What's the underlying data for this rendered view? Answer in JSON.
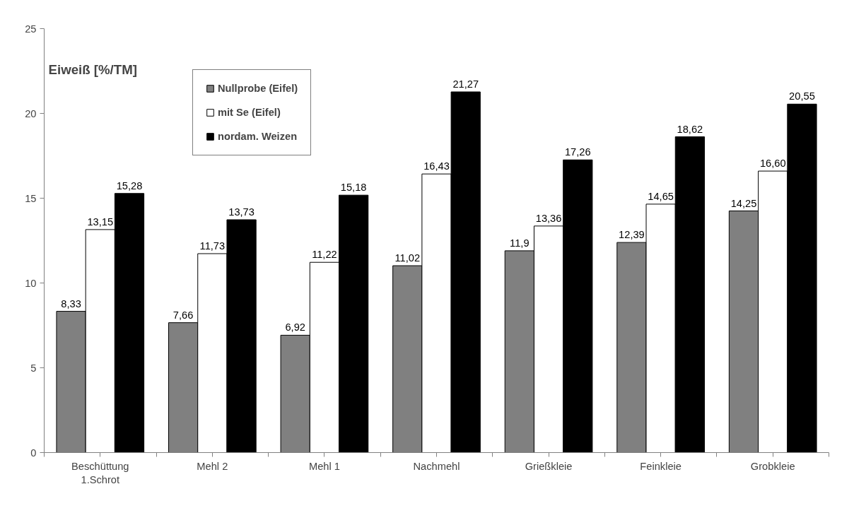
{
  "chart_data": {
    "type": "bar",
    "ylabel": "Eiweiß [%/TM]",
    "categories": [
      "Beschüttung\n1.Schrot",
      "Mehl 2",
      "Mehl 1",
      "Nachmehl",
      "Grießkleie",
      "Feinkleie",
      "Grobkleie"
    ],
    "series": [
      {
        "name": "Nullprobe (Eifel)",
        "color": "#808080",
        "values": [
          8.33,
          7.66,
          6.92,
          11.02,
          11.9,
          12.39,
          14.25
        ],
        "value_labels": [
          "8,33",
          "7,66",
          "6,92",
          "11,02",
          "11,9",
          "12,39",
          "14,25"
        ]
      },
      {
        "name": "mit Se (Eifel)",
        "color": "#ffffff",
        "values": [
          13.15,
          11.73,
          11.22,
          16.43,
          13.36,
          14.65,
          16.6
        ],
        "value_labels": [
          "13,15",
          "11,73",
          "11,22",
          "16,43",
          "13,36",
          "14,65",
          "16,60"
        ]
      },
      {
        "name": "nordam. Weizen",
        "color": "#000000",
        "values": [
          15.28,
          13.73,
          15.18,
          21.27,
          17.26,
          18.62,
          20.55
        ],
        "value_labels": [
          "15,28",
          "13,73",
          "15,18",
          "21,27",
          "17,26",
          "18,62",
          "20,55"
        ]
      }
    ],
    "ylim": [
      0,
      25
    ],
    "yticks": [
      0,
      5,
      10,
      15,
      20,
      25
    ],
    "grid": false,
    "legend": "top left"
  }
}
